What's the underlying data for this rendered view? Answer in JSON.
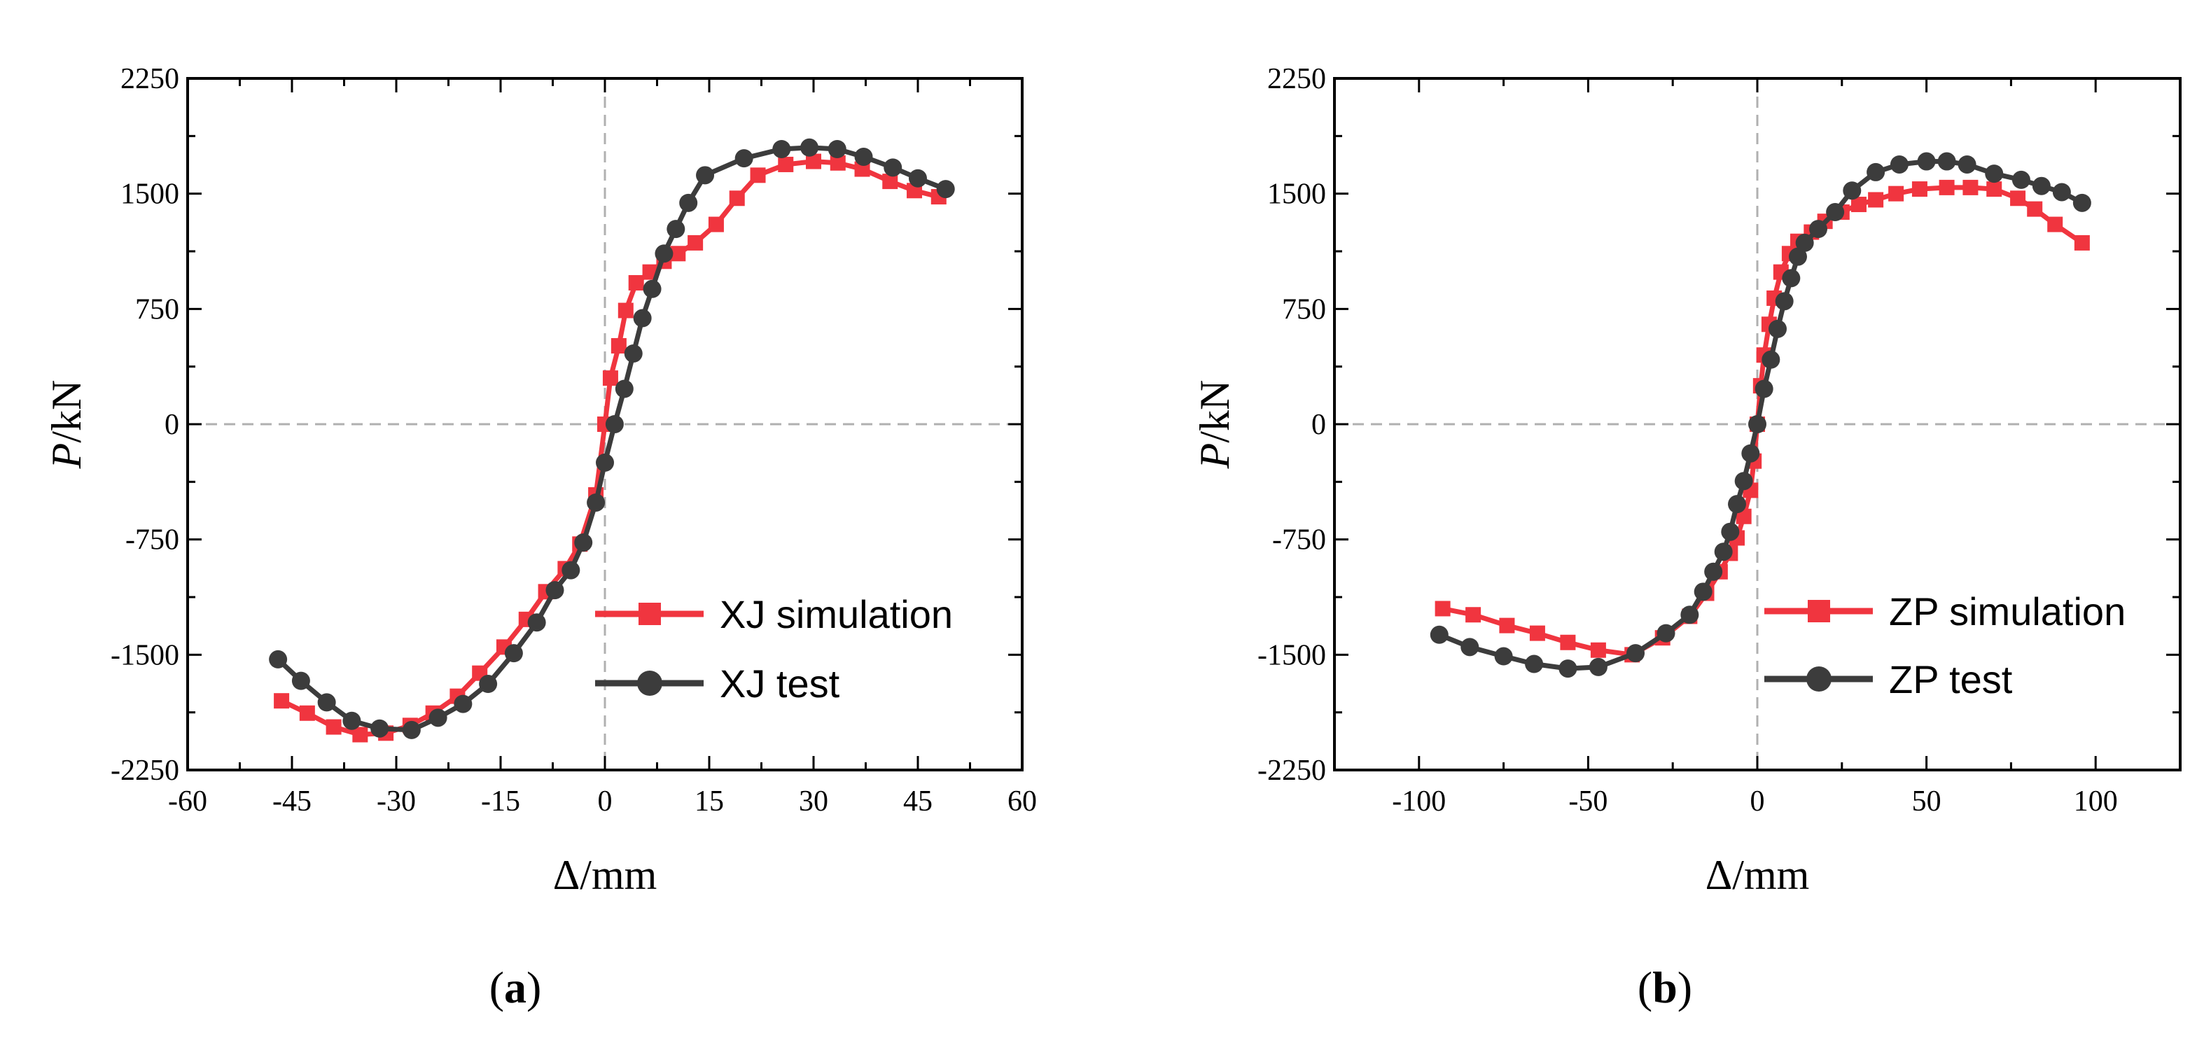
{
  "figure": {
    "panels": [
      "(a)",
      "(b)"
    ]
  },
  "colors": {
    "simulation": "#f0353f",
    "test": "#3c3c3c",
    "zero_line": "#b0b0b0"
  },
  "chart_data": [
    {
      "type": "line",
      "panel_label": "a",
      "title": "",
      "xlabel": "Δ/mm",
      "ylabel_italic": "P",
      "ylabel_rest": "/kN",
      "xlim": [
        -60,
        60
      ],
      "ylim": [
        -2250,
        2250
      ],
      "xticks": [
        -60,
        -45,
        -30,
        -15,
        0,
        15,
        30,
        45,
        60
      ],
      "yticks": [
        -2250,
        -1500,
        -750,
        0,
        750,
        1500,
        2250
      ],
      "xtick_labels": [
        "-60",
        "-45",
        "-30",
        "-15",
        "0",
        "15",
        "30",
        "45",
        "60"
      ],
      "ytick_labels": [
        "-2250",
        "-1500",
        "-750",
        "0",
        "750",
        "1500",
        "2250"
      ],
      "legend_position": "lower-right",
      "series": [
        {
          "name": "XJ simulation",
          "marker": "square",
          "color_key": "simulation",
          "x": [
            -46.5,
            -42.8,
            -39,
            -35.2,
            -31.5,
            -28,
            -24.7,
            -21.2,
            -18,
            -14.5,
            -11.3,
            -8.5,
            -5.7,
            -3.6,
            -1.3,
            0,
            0.8,
            2,
            3,
            4.5,
            6.5,
            8.5,
            10.5,
            13,
            16,
            19,
            22,
            26,
            30,
            33.5,
            37,
            41,
            44.5,
            48
          ],
          "y": [
            -1800,
            -1880,
            -1970,
            -2020,
            -2010,
            -1960,
            -1880,
            -1770,
            -1620,
            -1450,
            -1270,
            -1090,
            -940,
            -780,
            -460,
            0,
            300,
            510,
            740,
            920,
            990,
            1060,
            1110,
            1180,
            1300,
            1470,
            1620,
            1690,
            1710,
            1700,
            1660,
            1580,
            1520,
            1480
          ]
        },
        {
          "name": "XJ test",
          "marker": "circle",
          "color_key": "test",
          "x": [
            -47,
            -43.7,
            -40,
            -36.4,
            -32.4,
            -27.8,
            -24,
            -20.4,
            -16.8,
            -13.1,
            -9.8,
            -7.2,
            -4.9,
            -3.1,
            -1.3,
            0,
            1.4,
            2.8,
            4.1,
            5.4,
            6.8,
            8.5,
            10.2,
            12,
            14.4,
            20,
            25.4,
            29.4,
            33.4,
            37.2,
            41.4,
            45,
            49
          ],
          "y": [
            -1530,
            -1670,
            -1810,
            -1930,
            -1980,
            -1990,
            -1910,
            -1820,
            -1690,
            -1490,
            -1290,
            -1080,
            -950,
            -770,
            -510,
            -250,
            0,
            230,
            460,
            690,
            880,
            1110,
            1270,
            1440,
            1620,
            1730,
            1790,
            1800,
            1790,
            1740,
            1670,
            1600,
            1530
          ]
        }
      ]
    },
    {
      "type": "line",
      "panel_label": "b",
      "title": "",
      "xlabel": "Δ/mm",
      "ylabel_italic": "P",
      "ylabel_rest": "/kN",
      "xlim": [
        -125,
        125
      ],
      "ylim": [
        -2250,
        2250
      ],
      "xticks": [
        -100,
        -50,
        0,
        50,
        100
      ],
      "yticks": [
        -2250,
        -1500,
        -750,
        0,
        750,
        1500,
        2250
      ],
      "xtick_labels": [
        "-100",
        "-50",
        "0",
        "50",
        "100"
      ],
      "ytick_labels": [
        "-2250",
        "-1500",
        "-750",
        "0",
        "750",
        "1500",
        "2250"
      ],
      "legend_position": "lower-right",
      "series": [
        {
          "name": "ZP simulation",
          "marker": "square",
          "color_key": "simulation",
          "x": [
            -93,
            -84,
            -74,
            -65,
            -56,
            -47,
            -37,
            -28,
            -20,
            -15,
            -11,
            -8,
            -6,
            -4,
            -2,
            -1,
            0,
            1,
            2,
            3.5,
            5,
            7,
            9.5,
            12,
            16,
            20,
            25,
            30,
            35,
            41,
            48,
            56,
            63,
            70,
            77,
            82,
            88,
            96
          ],
          "y": [
            -1200,
            -1240,
            -1310,
            -1360,
            -1420,
            -1470,
            -1500,
            -1390,
            -1250,
            -1100,
            -960,
            -840,
            -740,
            -600,
            -430,
            -240,
            0,
            250,
            450,
            650,
            820,
            990,
            1110,
            1190,
            1250,
            1320,
            1380,
            1430,
            1460,
            1500,
            1530,
            1540,
            1540,
            1530,
            1470,
            1400,
            1300,
            1180
          ]
        },
        {
          "name": "ZP test",
          "marker": "circle",
          "color_key": "test",
          "x": [
            -94,
            -85,
            -75,
            -66,
            -56,
            -47,
            -36,
            -27,
            -20,
            -16,
            -13,
            -10,
            -8,
            -6,
            -4,
            -2,
            0,
            2,
            4,
            6,
            8,
            10,
            12,
            14,
            18,
            23,
            28,
            35,
            42,
            50,
            56,
            62,
            70,
            78,
            84,
            90,
            96
          ],
          "y": [
            -1370,
            -1450,
            -1510,
            -1560,
            -1590,
            -1580,
            -1490,
            -1360,
            -1240,
            -1090,
            -960,
            -830,
            -700,
            -520,
            -370,
            -190,
            0,
            230,
            420,
            620,
            800,
            950,
            1090,
            1180,
            1270,
            1380,
            1520,
            1640,
            1690,
            1710,
            1710,
            1690,
            1630,
            1590,
            1550,
            1510,
            1440
          ]
        }
      ]
    }
  ]
}
